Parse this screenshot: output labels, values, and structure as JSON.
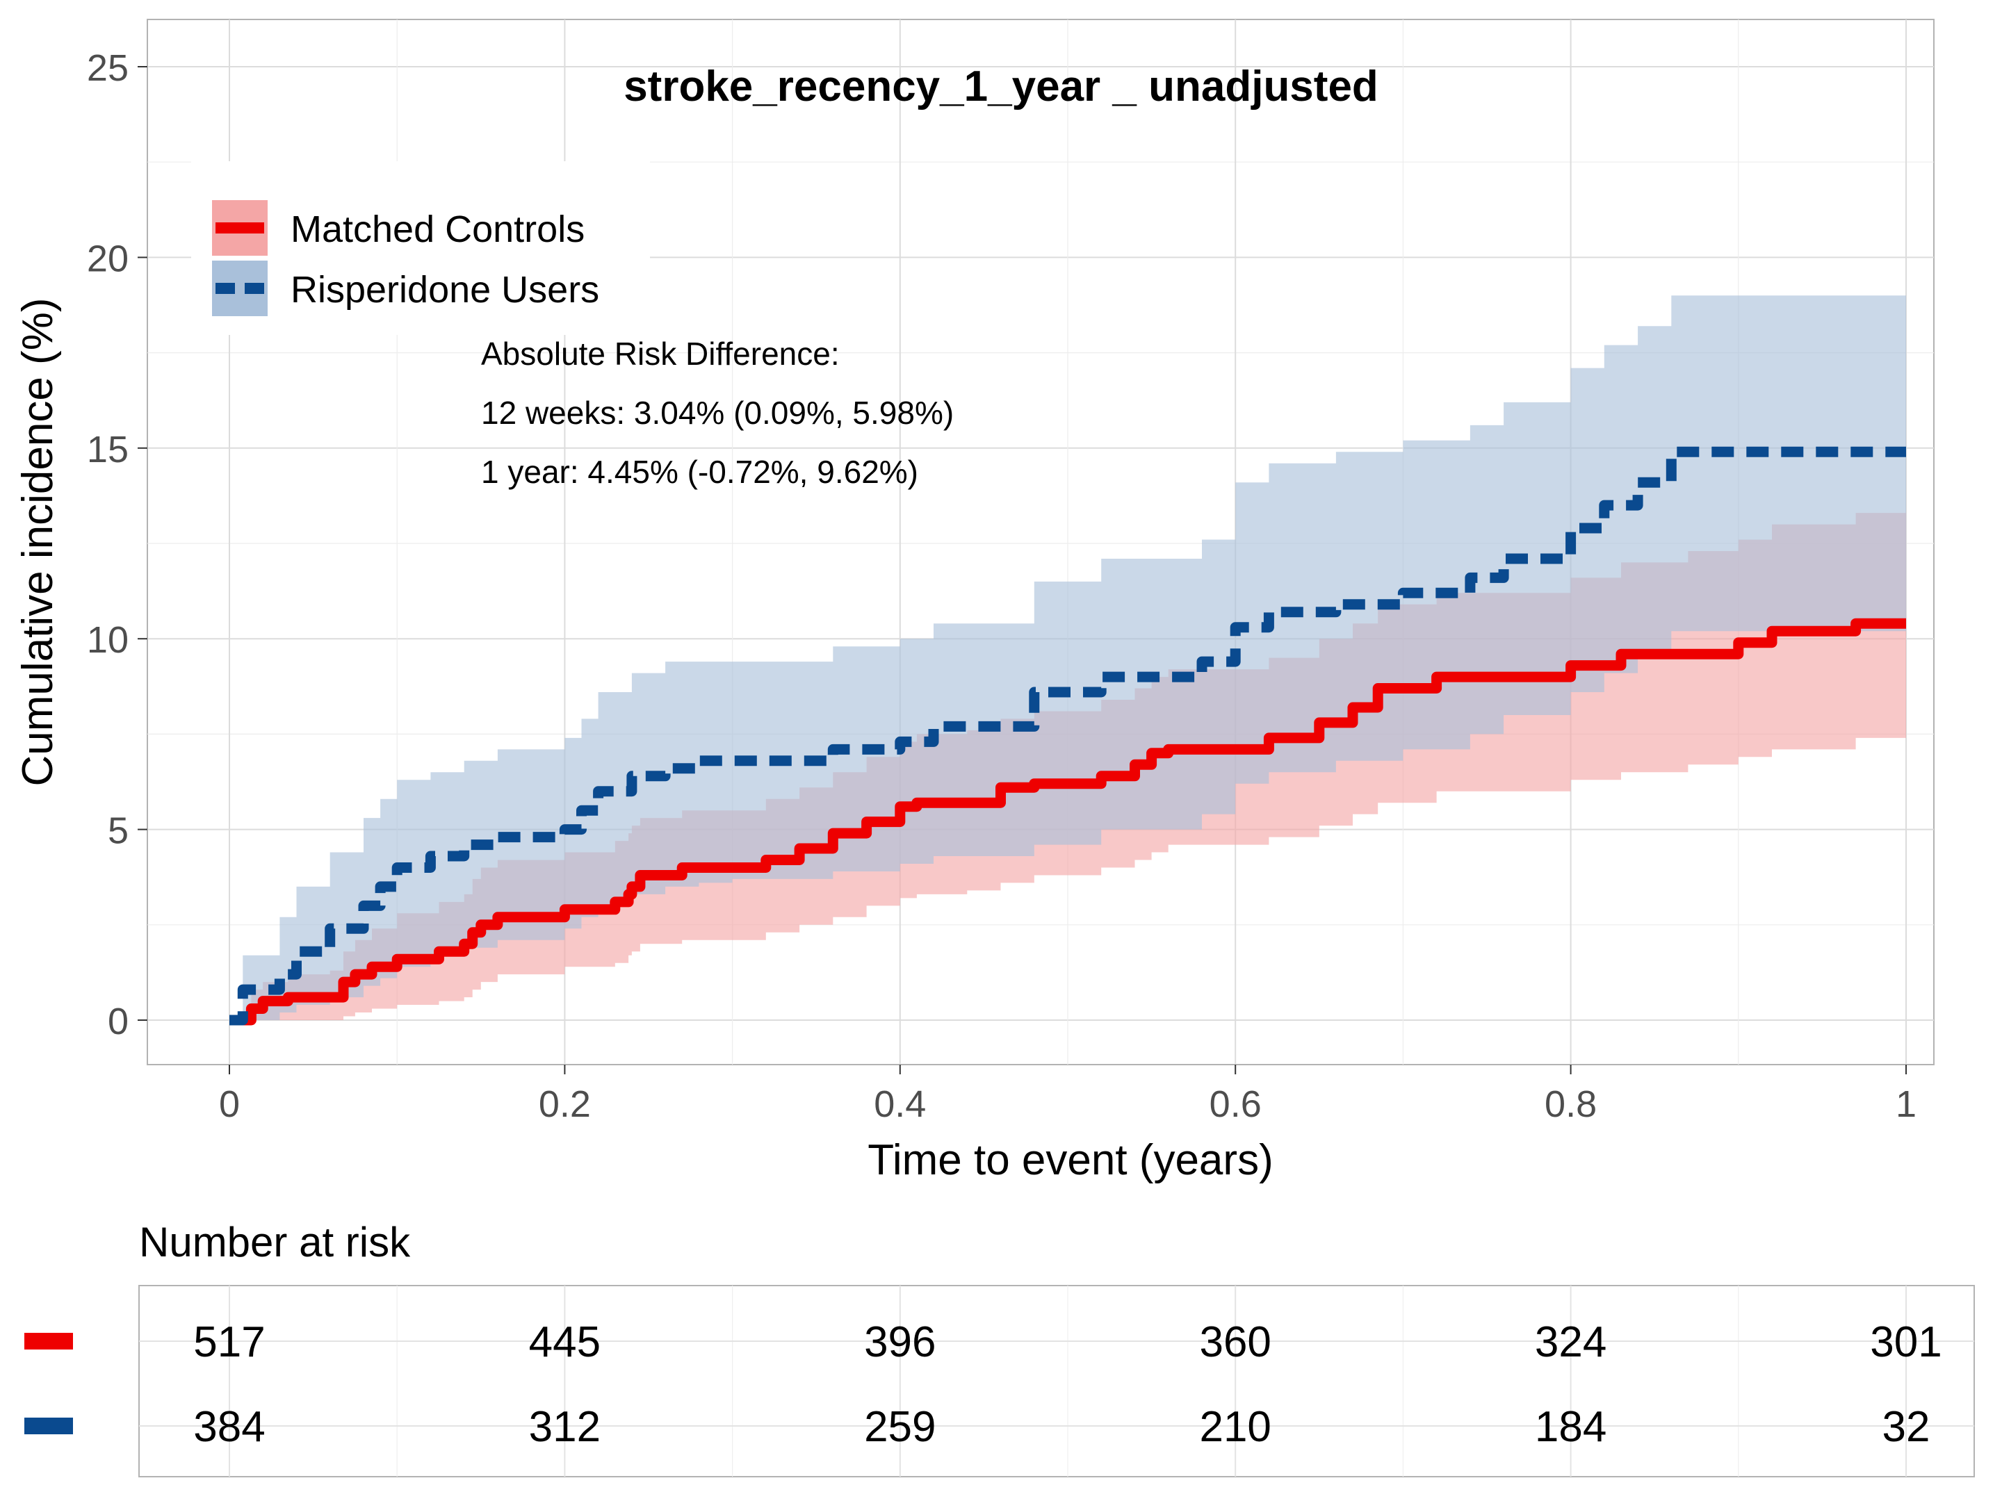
{
  "chart_data": {
    "type": "line",
    "subtype": "cumulative-incidence-step",
    "title": "stroke_recency_1_year _ unadjusted",
    "xlabel": "Time to event (years)",
    "ylabel": "Cumulative incidence (%)",
    "xlim": [
      0,
      1
    ],
    "ylim": [
      0,
      25
    ],
    "x_ticks": [
      0,
      0.2,
      0.4,
      0.6,
      0.8,
      1
    ],
    "x_tick_labels": [
      "0",
      "0.2",
      "0.4",
      "0.6",
      "0.8",
      "1"
    ],
    "y_ticks": [
      0,
      5,
      10,
      15,
      20,
      25
    ],
    "y_tick_labels": [
      "0",
      "5",
      "10",
      "15",
      "20",
      "25"
    ],
    "grid": true,
    "legend_position": "top-left",
    "series": [
      {
        "name": "Matched Controls",
        "color": "#EE0000",
        "band_color": "#F4A6A6",
        "line_style": "solid",
        "x": [
          0,
          0.013,
          0.02,
          0.035,
          0.06,
          0.068,
          0.075,
          0.085,
          0.1,
          0.125,
          0.14,
          0.145,
          0.15,
          0.16,
          0.2,
          0.23,
          0.238,
          0.24,
          0.245,
          0.27,
          0.32,
          0.34,
          0.36,
          0.38,
          0.4,
          0.41,
          0.44,
          0.46,
          0.48,
          0.52,
          0.54,
          0.55,
          0.56,
          0.62,
          0.65,
          0.67,
          0.685,
          0.72,
          0.8,
          0.83,
          0.87,
          0.9,
          0.92,
          0.97,
          1.0
        ],
        "y": [
          0,
          0.3,
          0.5,
          0.6,
          0.6,
          1.0,
          1.2,
          1.4,
          1.6,
          1.8,
          2.0,
          2.3,
          2.5,
          2.7,
          2.9,
          3.1,
          3.3,
          3.5,
          3.8,
          4.0,
          4.2,
          4.5,
          4.9,
          5.2,
          5.6,
          5.7,
          5.7,
          6.1,
          6.2,
          6.4,
          6.7,
          7.0,
          7.1,
          7.4,
          7.8,
          8.2,
          8.7,
          9.0,
          9.3,
          9.6,
          9.6,
          9.9,
          10.2,
          10.4,
          10.4
        ],
        "lower": [
          0,
          0.0,
          0.0,
          0.0,
          0.0,
          0.1,
          0.2,
          0.3,
          0.4,
          0.5,
          0.6,
          0.8,
          1.0,
          1.2,
          1.4,
          1.5,
          1.7,
          1.8,
          2.0,
          2.1,
          2.3,
          2.5,
          2.7,
          3.0,
          3.2,
          3.3,
          3.4,
          3.6,
          3.8,
          4.0,
          4.2,
          4.4,
          4.6,
          4.8,
          5.1,
          5.4,
          5.7,
          6.0,
          6.3,
          6.5,
          6.7,
          6.9,
          7.1,
          7.4,
          7.4
        ],
        "upper": [
          0,
          0.8,
          1.0,
          1.2,
          1.3,
          1.8,
          2.1,
          2.4,
          2.8,
          3.1,
          3.3,
          3.7,
          4.0,
          4.2,
          4.4,
          4.7,
          4.9,
          5.1,
          5.3,
          5.5,
          5.8,
          6.1,
          6.5,
          6.9,
          7.3,
          7.5,
          7.6,
          7.9,
          8.1,
          8.4,
          8.7,
          9.0,
          9.2,
          9.5,
          10.0,
          10.4,
          10.9,
          11.2,
          11.6,
          12.0,
          12.3,
          12.6,
          13.0,
          13.3,
          13.3
        ]
      },
      {
        "name": "Risperidone Users",
        "color": "#0A4A8F",
        "band_color": "#A9C0DA",
        "line_style": "dashed",
        "x": [
          0,
          0.008,
          0.03,
          0.04,
          0.06,
          0.08,
          0.09,
          0.1,
          0.12,
          0.14,
          0.16,
          0.2,
          0.21,
          0.22,
          0.24,
          0.26,
          0.28,
          0.3,
          0.36,
          0.4,
          0.42,
          0.48,
          0.52,
          0.58,
          0.6,
          0.62,
          0.66,
          0.7,
          0.74,
          0.76,
          0.8,
          0.82,
          0.84,
          0.86,
          1.0
        ],
        "y": [
          0,
          0.8,
          1.2,
          1.8,
          2.4,
          3.0,
          3.5,
          4.0,
          4.3,
          4.6,
          4.8,
          5.0,
          5.5,
          6.0,
          6.4,
          6.6,
          6.8,
          6.8,
          7.1,
          7.3,
          7.7,
          8.6,
          9.0,
          9.4,
          10.3,
          10.7,
          10.9,
          11.2,
          11.6,
          12.1,
          12.9,
          13.5,
          14.1,
          14.9,
          14.9
        ],
        "lower": [
          0,
          0.0,
          0.2,
          0.4,
          0.6,
          0.9,
          1.1,
          1.4,
          1.7,
          1.9,
          2.1,
          2.4,
          2.7,
          3.0,
          3.3,
          3.5,
          3.6,
          3.7,
          3.9,
          4.1,
          4.3,
          4.6,
          5.0,
          5.4,
          6.2,
          6.5,
          6.8,
          7.1,
          7.5,
          8.0,
          8.6,
          9.1,
          9.6,
          10.2,
          10.2
        ],
        "upper": [
          0,
          1.7,
          2.7,
          3.5,
          4.4,
          5.3,
          5.8,
          6.3,
          6.5,
          6.8,
          7.1,
          7.4,
          7.9,
          8.6,
          9.1,
          9.4,
          9.4,
          9.4,
          9.8,
          10.0,
          10.4,
          11.5,
          12.1,
          12.6,
          14.1,
          14.6,
          14.9,
          15.2,
          15.6,
          16.2,
          17.1,
          17.7,
          18.2,
          19.0,
          19.0
        ]
      }
    ],
    "annotation": {
      "heading": "Absolute Risk Difference:",
      "lines": [
        "12 weeks: 3.04% (0.09%, 5.98%)",
        "1 year: 4.45% (-0.72%, 9.62%)"
      ]
    },
    "risk_table": {
      "title": "Number at risk",
      "times": [
        0,
        0.2,
        0.4,
        0.6,
        0.8,
        1
      ],
      "rows": [
        {
          "series": "Matched Controls",
          "color": "#EE0000",
          "values": [
            "517",
            "445",
            "396",
            "360",
            "324",
            "301"
          ]
        },
        {
          "series": "Risperidone Users",
          "color": "#0A4A8F",
          "values": [
            "384",
            "312",
            "259",
            "210",
            "184",
            "32"
          ]
        }
      ]
    }
  }
}
